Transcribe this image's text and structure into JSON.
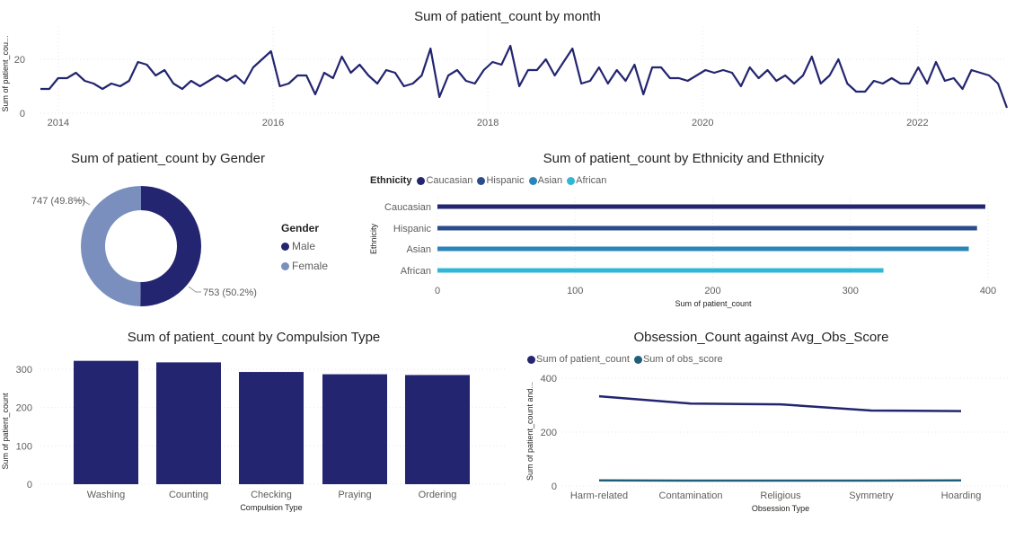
{
  "colors": {
    "navy": "#232570",
    "hispanic": "#2b4c8c",
    "asian": "#2a86b8",
    "african": "#30b7d6",
    "female": "#7a8fbd",
    "obs_score": "#205f7c"
  },
  "charts": {
    "month": {
      "title": "Sum of patient_count by month",
      "ylabel": "Sum of patient_cou...",
      "yticks": [
        "0",
        "20"
      ],
      "xticks": [
        "2014",
        "2016",
        "2018",
        "2020",
        "2022"
      ]
    },
    "gender": {
      "title": "Sum of patient_count by Gender",
      "legend_title": "Gender",
      "male_label": "Male",
      "female_label": "Female",
      "male_data_label": "753 (50.2%)",
      "female_data_label": "747 (49.8%)"
    },
    "ethnicity": {
      "title": "Sum of patient_count by Ethnicity and Ethnicity",
      "legend_title": "Ethnicity",
      "ylabel": "Ethnicity",
      "xlabel": "Sum of patient_count",
      "xticks": [
        "0",
        "100",
        "200",
        "300",
        "400"
      ]
    },
    "compulsion": {
      "title": "Sum of patient_count by Compulsion Type",
      "ylabel": "Sum of patient_count",
      "xlabel": "Compulsion Type",
      "yticks": [
        "0",
        "100",
        "200",
        "300"
      ]
    },
    "obsession": {
      "title": "Obsession_Count against Avg_Obs_Score",
      "ylabel": "Sum of patient_count and...",
      "xlabel": "Obsession Type",
      "yticks": [
        "0",
        "200",
        "400"
      ]
    }
  },
  "chart_data": [
    {
      "type": "line",
      "title": "Sum of patient_count by month",
      "xlabel": "",
      "ylabel": "Sum of patient_cou...",
      "xlim": [
        "2013-11",
        "2022-11"
      ],
      "ylim": [
        0,
        30
      ],
      "grid": true,
      "series": [
        {
          "values": [
            9,
            9,
            13,
            13,
            15,
            12,
            11,
            9,
            11,
            10,
            12,
            19,
            18,
            14,
            16,
            11,
            9,
            12,
            10,
            12,
            14,
            12,
            14,
            11,
            17,
            20,
            23,
            10,
            11,
            14,
            14,
            7,
            15,
            13,
            21,
            15,
            18,
            14,
            11,
            16,
            15,
            10,
            11,
            14,
            24,
            6,
            14,
            16,
            12,
            11,
            16,
            19,
            18,
            25,
            10,
            16,
            16,
            20,
            14,
            19,
            24,
            11,
            12,
            17,
            11,
            16,
            12,
            18,
            7,
            17,
            17,
            13,
            13,
            12,
            14,
            16,
            15,
            16,
            15,
            10,
            17,
            13,
            16,
            12,
            14,
            11,
            14,
            21,
            11,
            14,
            20,
            11,
            8,
            8,
            12,
            11,
            13,
            11,
            11,
            17,
            11,
            19,
            12,
            13,
            9,
            16,
            15,
            14,
            11,
            2
          ]
        }
      ]
    },
    {
      "type": "pie",
      "title": "Sum of patient_count by Gender",
      "categories": [
        "Male",
        "Female"
      ],
      "values": [
        753,
        747
      ],
      "labels": [
        "753 (50.2%)",
        "747 (49.8%)"
      ],
      "legend": "right"
    },
    {
      "type": "bar",
      "orientation": "horizontal",
      "title": "Sum of patient_count by Ethnicity and Ethnicity",
      "categories": [
        "Caucasian",
        "Hispanic",
        "Asian",
        "African"
      ],
      "values": [
        398,
        392,
        386,
        324
      ],
      "xlabel": "Sum of patient_count",
      "ylabel": "Ethnicity",
      "xlim": [
        0,
        410
      ],
      "legend": "top-left"
    },
    {
      "type": "bar",
      "title": "Sum of patient_count by Compulsion Type",
      "categories": [
        "Washing",
        "Counting",
        "Checking",
        "Praying",
        "Ordering"
      ],
      "values": [
        322,
        318,
        293,
        287,
        285
      ],
      "xlabel": "Compulsion Type",
      "ylabel": "Sum of patient_count",
      "ylim": [
        0,
        330
      ]
    },
    {
      "type": "line",
      "title": "Obsession_Count against Avg_Obs_Score",
      "categories": [
        "Harm-related",
        "Contamination",
        "Religious",
        "Symmetry",
        "Hoarding"
      ],
      "series": [
        {
          "name": "Sum of patient_count",
          "values": [
            333,
            306,
            303,
            280,
            278
          ]
        },
        {
          "name": "Sum of obs_score",
          "values": [
            21,
            20,
            20,
            20,
            21
          ]
        }
      ],
      "xlabel": "Obsession Type",
      "ylabel": "Sum of patient_count and...",
      "ylim": [
        0,
        400
      ],
      "legend": "top-left"
    }
  ]
}
